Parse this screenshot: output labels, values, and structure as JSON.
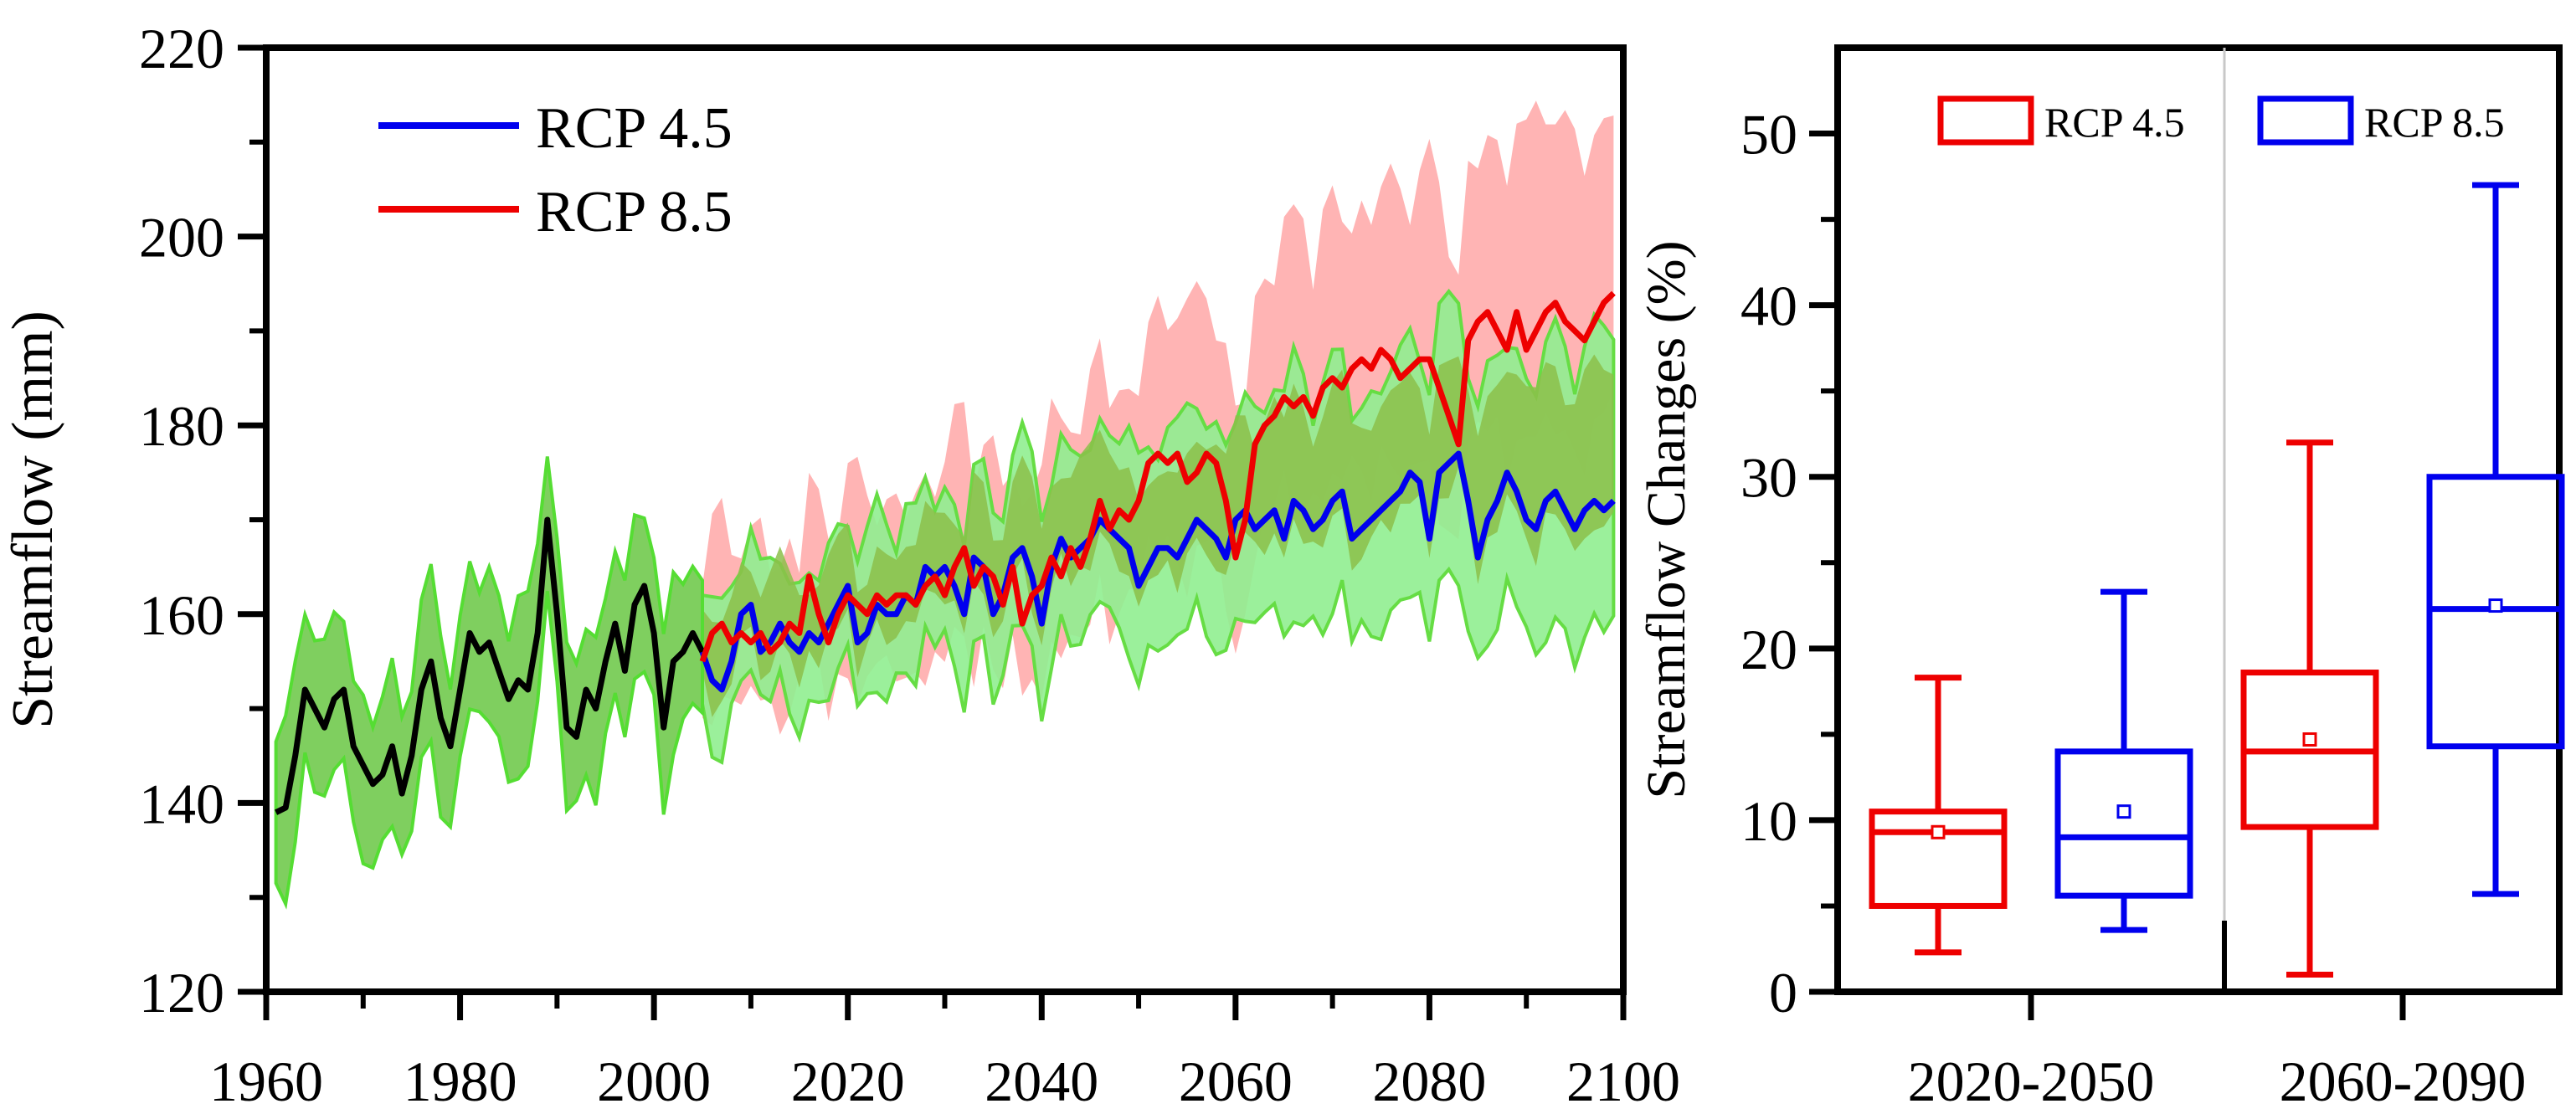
{
  "chart_data": [
    {
      "type": "line",
      "panel": "left",
      "ylabel": "Streamflow (mm)",
      "xlabel": "",
      "xlim": [
        1960,
        2100
      ],
      "ylim": [
        120,
        220
      ],
      "xticks": [
        1960,
        1980,
        2000,
        2020,
        2040,
        2060,
        2080,
        2100
      ],
      "yticks": [
        120,
        140,
        160,
        180,
        200,
        220
      ],
      "legend": {
        "placement": "top-left",
        "entries": [
          "RCP 4.5",
          "RCP 8.5"
        ]
      },
      "series": [
        {
          "name": "Historical",
          "color": "#000000",
          "x": [
            1961,
            1962,
            1963,
            1964,
            1965,
            1966,
            1967,
            1968,
            1969,
            1970,
            1971,
            1972,
            1973,
            1974,
            1975,
            1976,
            1977,
            1978,
            1979,
            1980,
            1981,
            1982,
            1983,
            1984,
            1985,
            1986,
            1987,
            1988,
            1989,
            1990,
            1991,
            1992,
            1993,
            1994,
            1995,
            1996,
            1997,
            1998,
            1999,
            2000,
            2001,
            2002,
            2003,
            2004,
            2005
          ],
          "y": [
            139,
            139.5,
            145,
            152,
            150,
            148,
            151,
            152,
            146,
            144,
            142,
            143,
            146,
            141,
            145,
            152,
            155,
            149,
            146,
            152,
            158,
            156,
            157,
            154,
            151,
            153,
            152,
            158,
            170,
            160,
            148,
            147,
            152,
            150,
            155,
            159,
            154,
            161,
            163,
            158,
            148,
            155,
            156,
            158,
            156
          ]
        },
        {
          "name": "RCP 4.5",
          "color": "#0000ee",
          "x": [
            2005,
            2006,
            2007,
            2008,
            2009,
            2010,
            2011,
            2012,
            2013,
            2014,
            2015,
            2016,
            2017,
            2018,
            2019,
            2020,
            2021,
            2022,
            2023,
            2024,
            2025,
            2026,
            2027,
            2028,
            2029,
            2030,
            2031,
            2032,
            2033,
            2034,
            2035,
            2036,
            2037,
            2038,
            2039,
            2040,
            2041,
            2042,
            2043,
            2044,
            2045,
            2046,
            2047,
            2048,
            2049,
            2050,
            2051,
            2052,
            2053,
            2054,
            2055,
            2056,
            2057,
            2058,
            2059,
            2060,
            2061,
            2062,
            2063,
            2064,
            2065,
            2066,
            2067,
            2068,
            2069,
            2070,
            2071,
            2072,
            2073,
            2074,
            2075,
            2076,
            2077,
            2078,
            2079,
            2080,
            2081,
            2082,
            2083,
            2084,
            2085,
            2086,
            2087,
            2088,
            2089,
            2090,
            2091,
            2092,
            2093,
            2094,
            2095,
            2096,
            2097,
            2098,
            2099
          ],
          "y": [
            156,
            153,
            152,
            155,
            160,
            161,
            156,
            157,
            159,
            157,
            156,
            158,
            157,
            159,
            161,
            163,
            157,
            158,
            161,
            160,
            160,
            162,
            161,
            165,
            164,
            165,
            163,
            160,
            166,
            165,
            160,
            162,
            166,
            167,
            164,
            159,
            165,
            168,
            166,
            167,
            168,
            170,
            169,
            168,
            167,
            163,
            165,
            167,
            167,
            166,
            168,
            170,
            169,
            168,
            166,
            170,
            171,
            169,
            170,
            171,
            168,
            172,
            171,
            169,
            170,
            172,
            173,
            168,
            169,
            170,
            171,
            172,
            173,
            175,
            174,
            168,
            175,
            176,
            177,
            172,
            166,
            170,
            172,
            175,
            173,
            170,
            169,
            172,
            173,
            171,
            169,
            171,
            172,
            171,
            172
          ]
        },
        {
          "name": "RCP 8.5",
          "color": "#ee0000",
          "x": [
            2005,
            2006,
            2007,
            2008,
            2009,
            2010,
            2011,
            2012,
            2013,
            2014,
            2015,
            2016,
            2017,
            2018,
            2019,
            2020,
            2021,
            2022,
            2023,
            2024,
            2025,
            2026,
            2027,
            2028,
            2029,
            2030,
            2031,
            2032,
            2033,
            2034,
            2035,
            2036,
            2037,
            2038,
            2039,
            2040,
            2041,
            2042,
            2043,
            2044,
            2045,
            2046,
            2047,
            2048,
            2049,
            2050,
            2051,
            2052,
            2053,
            2054,
            2055,
            2056,
            2057,
            2058,
            2059,
            2060,
            2061,
            2062,
            2063,
            2064,
            2065,
            2066,
            2067,
            2068,
            2069,
            2070,
            2071,
            2072,
            2073,
            2074,
            2075,
            2076,
            2077,
            2078,
            2079,
            2080,
            2081,
            2082,
            2083,
            2084,
            2085,
            2086,
            2087,
            2088,
            2089,
            2090,
            2091,
            2092,
            2093,
            2094,
            2095,
            2096,
            2097,
            2098,
            2099
          ],
          "y": [
            155,
            158,
            159,
            157,
            158,
            157,
            158,
            156,
            157,
            159,
            158,
            164,
            160,
            157,
            160,
            162,
            161,
            160,
            162,
            161,
            162,
            162,
            161,
            163,
            164,
            162,
            165,
            167,
            163,
            165,
            164,
            161,
            165,
            159,
            162,
            163,
            166,
            164,
            167,
            165,
            168,
            172,
            169,
            171,
            170,
            172,
            176,
            177,
            176,
            177,
            174,
            175,
            177,
            176,
            172,
            166,
            170,
            178,
            180,
            181,
            183,
            182,
            183,
            181,
            184,
            185,
            184,
            186,
            187,
            186,
            188,
            187,
            185,
            186,
            187,
            187,
            184,
            181,
            178,
            189,
            191,
            192,
            190,
            188,
            192,
            188,
            190,
            192,
            193,
            191,
            190,
            189,
            191,
            193,
            194
          ]
        }
      ],
      "bands": [
        {
          "name": "RCP 8.5 range",
          "color": "#ffb0b0"
        },
        {
          "name": "RCP 4.5 range",
          "color": "#90ee90"
        },
        {
          "name": "Historical range",
          "color": "#7fcf5f"
        }
      ]
    },
    {
      "type": "box",
      "panel": "right",
      "ylabel": "Streamflow Changes (%)",
      "xlabel": "",
      "ylim": [
        0,
        55
      ],
      "yticks": [
        0,
        10,
        20,
        30,
        40,
        50
      ],
      "categories": [
        "2020-2050",
        "2060-2090"
      ],
      "legend": {
        "placement": "top",
        "entries": [
          "RCP 4.5",
          "RCP 8.5"
        ]
      },
      "series": [
        {
          "name": "RCP 4.5",
          "color": "#ee0000",
          "boxes": [
            {
              "category": "2020-2050",
              "min": 2.3,
              "q1": 5.0,
              "median": 9.3,
              "q3": 10.5,
              "max": 18.3,
              "mean": 9.3
            },
            {
              "category": "2060-2090",
              "min": 1.0,
              "q1": 9.6,
              "median": 14.0,
              "q3": 18.6,
              "max": 32.0,
              "mean": 14.7
            }
          ]
        },
        {
          "name": "RCP 8.5",
          "color": "#0000ee",
          "boxes": [
            {
              "category": "2020-2050",
              "min": 3.6,
              "q1": 5.6,
              "median": 9.0,
              "q3": 14.0,
              "max": 23.3,
              "mean": 10.5
            },
            {
              "category": "2060-2090",
              "min": 5.7,
              "q1": 14.3,
              "median": 22.3,
              "q3": 30.0,
              "max": 47.0,
              "mean": 22.5
            }
          ]
        }
      ]
    }
  ]
}
